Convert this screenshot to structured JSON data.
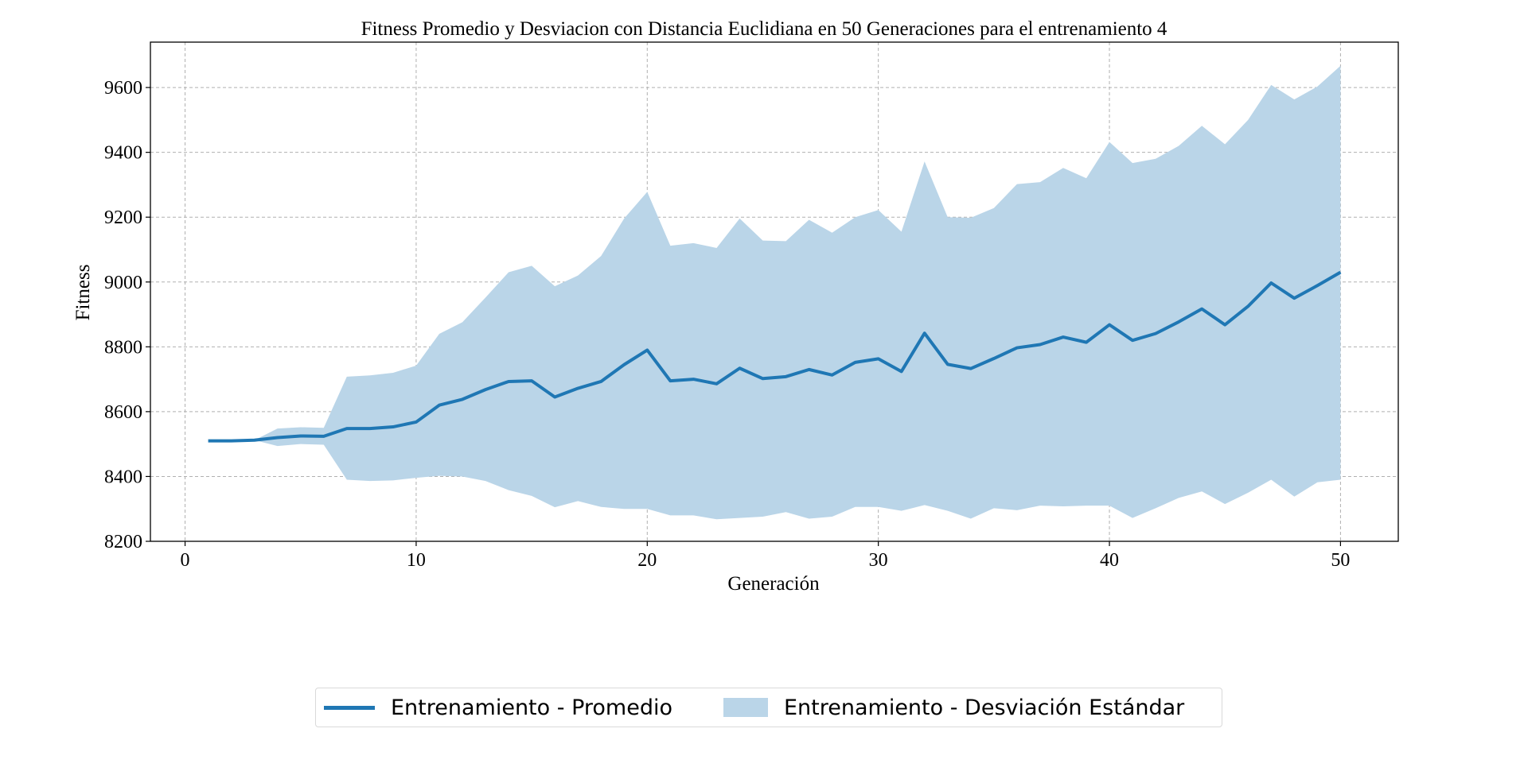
{
  "chart_data": {
    "type": "line",
    "title": "Fitness Promedio y Desviacion con Distancia Euclidiana en 50 Generaciones para el entrenamiento 4",
    "xlabel": "Generación",
    "ylabel": "Fitness",
    "xlim": [
      -1.5,
      52.5
    ],
    "ylim": [
      8200,
      9740
    ],
    "xticks": [
      0,
      10,
      20,
      30,
      40,
      50
    ],
    "yticks": [
      8200,
      8400,
      8600,
      8800,
      9000,
      9200,
      9400,
      9600
    ],
    "grid": true,
    "legend_position": "bottom-center",
    "x": [
      1,
      2,
      3,
      4,
      5,
      6,
      7,
      8,
      9,
      10,
      11,
      12,
      13,
      14,
      15,
      16,
      17,
      18,
      19,
      20,
      21,
      22,
      23,
      24,
      25,
      26,
      27,
      28,
      29,
      30,
      31,
      32,
      33,
      34,
      35,
      36,
      37,
      38,
      39,
      40,
      41,
      42,
      43,
      44,
      45,
      46,
      47,
      48,
      49,
      50
    ],
    "series": [
      {
        "name": "Entrenamiento  - Promedio",
        "kind": "line",
        "color": "#1f77b4",
        "values": [
          8510,
          8510,
          8512,
          8520,
          8525,
          8524,
          8548,
          8548,
          8553,
          8568,
          8620,
          8638,
          8668,
          8693,
          8695,
          8645,
          8672,
          8693,
          8745,
          8790,
          8695,
          8700,
          8686,
          8734,
          8702,
          8708,
          8730,
          8713,
          8752,
          8763,
          8724,
          8842,
          8746,
          8733,
          8764,
          8797,
          8807,
          8830,
          8814,
          8868,
          8820,
          8841,
          8877,
          8917,
          8868,
          8925,
          8997,
          8950,
          8989,
          9030
        ]
      },
      {
        "name": "Entrenamiento  - Desviación Estándar",
        "kind": "band",
        "color": "#bad5e8",
        "upper": [
          8510,
          8510,
          8512,
          8548,
          8552,
          8550,
          8708,
          8712,
          8720,
          8742,
          8840,
          8876,
          8952,
          9030,
          9050,
          8987,
          9020,
          9080,
          9196,
          9278,
          9112,
          9120,
          9105,
          9196,
          9128,
          9126,
          9192,
          9152,
          9200,
          9222,
          9155,
          9372,
          9200,
          9198,
          9228,
          9302,
          9308,
          9352,
          9320,
          9432,
          9367,
          9380,
          9420,
          9482,
          9425,
          9500,
          9608,
          9563,
          9603,
          9667
        ],
        "lower": [
          8510,
          8510,
          8512,
          8494,
          8500,
          8498,
          8390,
          8386,
          8388,
          8396,
          8402,
          8400,
          8386,
          8358,
          8340,
          8305,
          8324,
          8306,
          8300,
          8300,
          8280,
          8280,
          8268,
          8272,
          8276,
          8290,
          8270,
          8276,
          8306,
          8306,
          8294,
          8312,
          8294,
          8270,
          8302,
          8296,
          8310,
          8308,
          8310,
          8310,
          8272,
          8302,
          8334,
          8354,
          8315,
          8350,
          8390,
          8338,
          8382,
          8390
        ]
      }
    ]
  }
}
